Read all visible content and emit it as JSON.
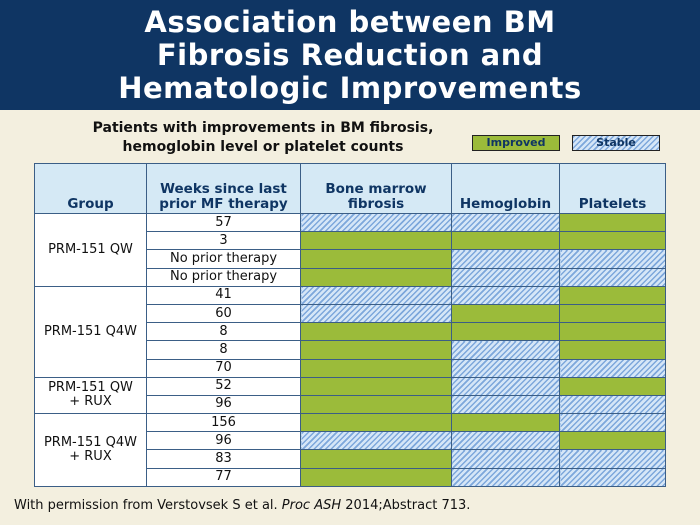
{
  "title": "Association between BM\nFibrosis Reduction and\nHematologic Improvements",
  "subtitle": "Patients with improvements in BM fibrosis,\nhemoglobin level or platelet counts",
  "legend": {
    "improved_label": "Improved",
    "stable_label": "Stable",
    "improved_color": "#9bbb3a",
    "stable_color": "#7da7db"
  },
  "table": {
    "headers": [
      "Group",
      "Weeks since last\nprior MF therapy",
      "Bone marrow\nfibrosis",
      "Hemoglobin",
      "Platelets"
    ],
    "groups": [
      {
        "name": "PRM-151 QW",
        "rows": [
          {
            "weeks": "57",
            "bm": "Stable",
            "hgb": "Stable",
            "plt": "Improved"
          },
          {
            "weeks": "3",
            "bm": "Improved",
            "hgb": "Improved",
            "plt": "Improved"
          },
          {
            "weeks": "No prior therapy",
            "bm": "Improved",
            "hgb": "Stable",
            "plt": "Stable"
          },
          {
            "weeks": "No prior therapy",
            "bm": "Improved",
            "hgb": "Stable",
            "plt": "Stable"
          }
        ]
      },
      {
        "name": "PRM-151 Q4W",
        "rows": [
          {
            "weeks": "41",
            "bm": "Stable",
            "hgb": "Stable",
            "plt": "Improved"
          },
          {
            "weeks": "60",
            "bm": "Stable",
            "hgb": "Improved",
            "plt": "Improved"
          },
          {
            "weeks": "8",
            "bm": "Improved",
            "hgb": "Improved",
            "plt": "Improved"
          },
          {
            "weeks": "8",
            "bm": "Improved",
            "hgb": "Stable",
            "plt": "Improved"
          },
          {
            "weeks": "70",
            "bm": "Improved",
            "hgb": "Stable",
            "plt": "Stable"
          }
        ]
      },
      {
        "name": "PRM-151 QW\n+ RUX",
        "rows": [
          {
            "weeks": "52",
            "bm": "Improved",
            "hgb": "Stable",
            "plt": "Improved"
          },
          {
            "weeks": "96",
            "bm": "Improved",
            "hgb": "Stable",
            "plt": "Stable"
          }
        ]
      },
      {
        "name": "PRM-151 Q4W\n+ RUX",
        "rows": [
          {
            "weeks": "156",
            "bm": "Improved",
            "hgb": "Improved",
            "plt": "Stable"
          },
          {
            "weeks": "96",
            "bm": "Stable",
            "hgb": "Stable",
            "plt": "Improved"
          },
          {
            "weeks": "83",
            "bm": "Improved",
            "hgb": "Stable",
            "plt": "Stable"
          },
          {
            "weeks": "77",
            "bm": "Improved",
            "hgb": "Stable",
            "plt": "Stable"
          }
        ]
      }
    ]
  },
  "footer": {
    "prefix": "With permission from Verstovsek S et al. ",
    "journal": "Proc ASH",
    "suffix": " 2014;Abstract 713."
  }
}
